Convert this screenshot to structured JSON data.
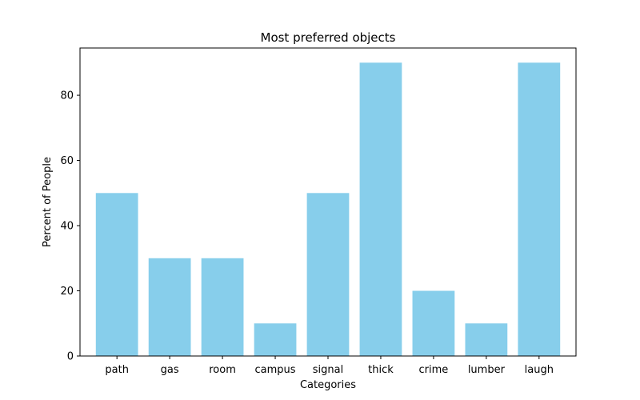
{
  "chart_data": {
    "type": "bar",
    "title": "Most preferred objects",
    "xlabel": "Categories",
    "ylabel": "Percent of People",
    "categories": [
      "path",
      "gas",
      "room",
      "campus",
      "signal",
      "thick",
      "crime",
      "lumber",
      "laugh"
    ],
    "values": [
      50,
      30,
      30,
      10,
      50,
      90,
      20,
      10,
      90
    ],
    "ylim": [
      0,
      94.5
    ],
    "yticks": [
      0,
      20,
      40,
      60,
      80
    ],
    "grid": false,
    "legend": "none",
    "bar_color": "#87CEEB",
    "axis_color": "#000000"
  }
}
